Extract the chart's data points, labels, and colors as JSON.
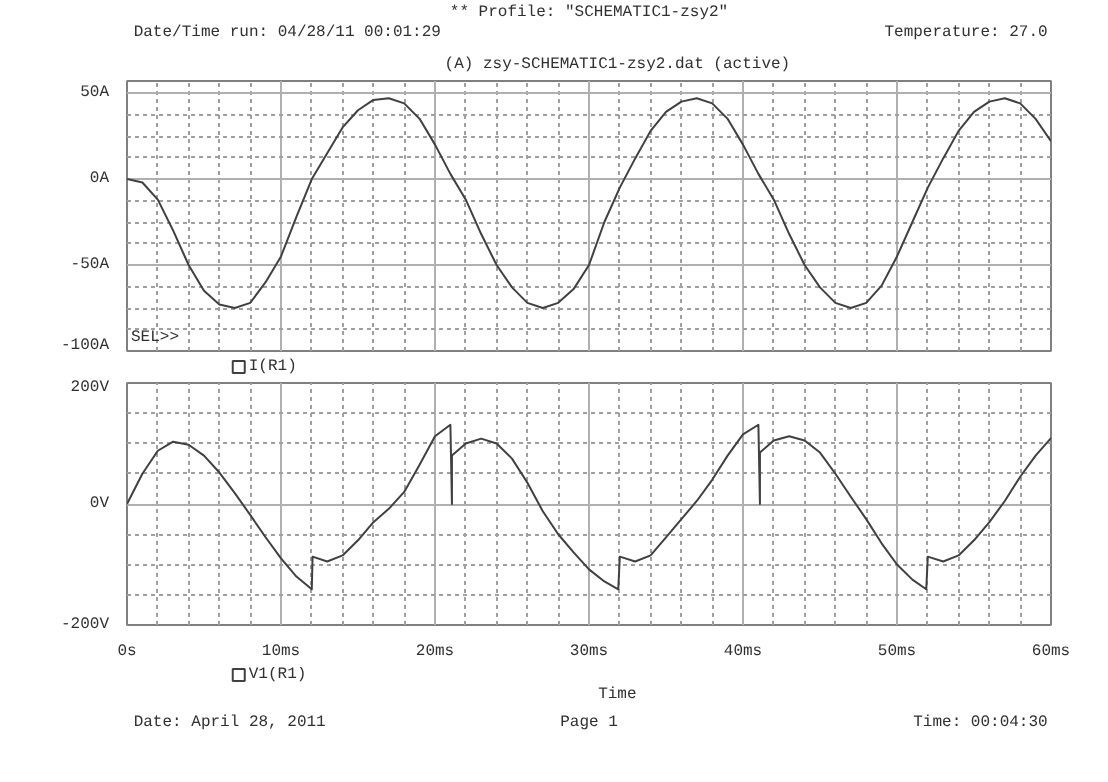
{
  "chart_data": [
    {
      "type": "line",
      "title": "(A) zsy-SCHEMATIC1-zsy2.dat (active)",
      "annotations": [
        "** Profile: \"SCHEMATIC1-zsy2\"",
        "Date/Time run: 04/28/11 00:01:29",
        "Temperature: 27.0",
        "SEL>>"
      ],
      "series": [
        {
          "name": "I(R1)",
          "color": "#404040",
          "x": [
            0,
            1,
            2,
            3,
            4,
            5,
            6,
            7,
            8,
            9,
            10,
            11,
            12,
            13,
            14,
            15,
            16,
            17,
            18,
            19,
            20,
            21,
            22,
            23,
            24,
            25,
            26,
            27,
            28,
            29,
            30,
            31,
            32,
            33,
            34,
            35,
            36,
            37,
            38,
            39,
            40,
            41,
            42,
            43,
            44,
            45,
            46,
            47,
            48,
            49,
            50,
            51,
            52,
            53,
            54,
            55,
            56,
            57,
            58,
            59,
            60
          ],
          "values": [
            0,
            -2,
            -12,
            -30,
            -50,
            -65,
            -73,
            -75,
            -72,
            -60,
            -45,
            -22,
            0,
            15,
            30,
            40,
            46,
            47,
            44,
            35,
            20,
            3,
            -12,
            -32,
            -50,
            -63,
            -72,
            -75,
            -72,
            -64,
            -50,
            -25,
            -5,
            12,
            28,
            39,
            45,
            47,
            44,
            35,
            20,
            3,
            -12,
            -32,
            -50,
            -63,
            -72,
            -75,
            -72,
            -62,
            -45,
            -25,
            -5,
            12,
            28,
            39,
            45,
            47,
            44,
            35,
            22
          ]
        }
      ],
      "xlim": [
        0,
        60
      ],
      "ylim": [
        -100,
        57
      ],
      "yticks": [
        {
          "value": 50,
          "label": "50A"
        },
        {
          "value": 0,
          "label": "0A"
        },
        {
          "value": -50,
          "label": "-50A"
        },
        {
          "value": -100,
          "label": "-100A"
        }
      ],
      "tick_labels": "y",
      "grid": true
    },
    {
      "type": "line",
      "xlabel": "Time",
      "annotations": [
        "Date: April 28, 2011",
        "Page 1",
        "Time: 00:04:30"
      ],
      "series": [
        {
          "name": "V1(R1)",
          "color": "#404040",
          "x": [
            0,
            1,
            2,
            3,
            4,
            5,
            6,
            7,
            8,
            9,
            10,
            11,
            12,
            12.05,
            13,
            14,
            15,
            16,
            17,
            18,
            19,
            20,
            21,
            21.1,
            21.1,
            22,
            23,
            24,
            25,
            26,
            27,
            28,
            29,
            30,
            31,
            31.9,
            32,
            33,
            34,
            35,
            36,
            37,
            38,
            39,
            40,
            41,
            41.1,
            41.1,
            42,
            43,
            44,
            45,
            46,
            47,
            48,
            49,
            50,
            51,
            51.9,
            52,
            53,
            54,
            55,
            56,
            57,
            58,
            59,
            60
          ],
          "values": [
            0,
            50,
            88,
            103,
            98,
            80,
            52,
            18,
            -18,
            -55,
            -90,
            -120,
            -141,
            -87,
            -95,
            -85,
            -60,
            -30,
            -8,
            20,
            65,
            112,
            131,
            0,
            80,
            100,
            108,
            100,
            75,
            35,
            -12,
            -50,
            -80,
            -108,
            -128,
            -141,
            -87,
            -95,
            -85,
            -55,
            -25,
            5,
            40,
            80,
            115,
            131,
            0,
            85,
            105,
            112,
            105,
            85,
            50,
            12,
            -25,
            -65,
            -100,
            -125,
            -141,
            -87,
            -95,
            -85,
            -60,
            -30,
            5,
            45,
            80,
            109
          ]
        }
      ],
      "xlim": [
        0,
        60
      ],
      "ylim": [
        -200,
        200
      ],
      "xticks": [
        {
          "value": 0,
          "label": "0s"
        },
        {
          "value": 10,
          "label": "10ms"
        },
        {
          "value": 20,
          "label": "20ms"
        },
        {
          "value": 30,
          "label": "30ms"
        },
        {
          "value": 40,
          "label": "40ms"
        },
        {
          "value": 50,
          "label": "50ms"
        },
        {
          "value": 60,
          "label": "60ms"
        }
      ],
      "yticks": [
        {
          "value": 200,
          "label": "200V"
        },
        {
          "value": 0,
          "label": "0V"
        },
        {
          "value": -200,
          "label": "-200V"
        }
      ],
      "grid": true
    }
  ]
}
